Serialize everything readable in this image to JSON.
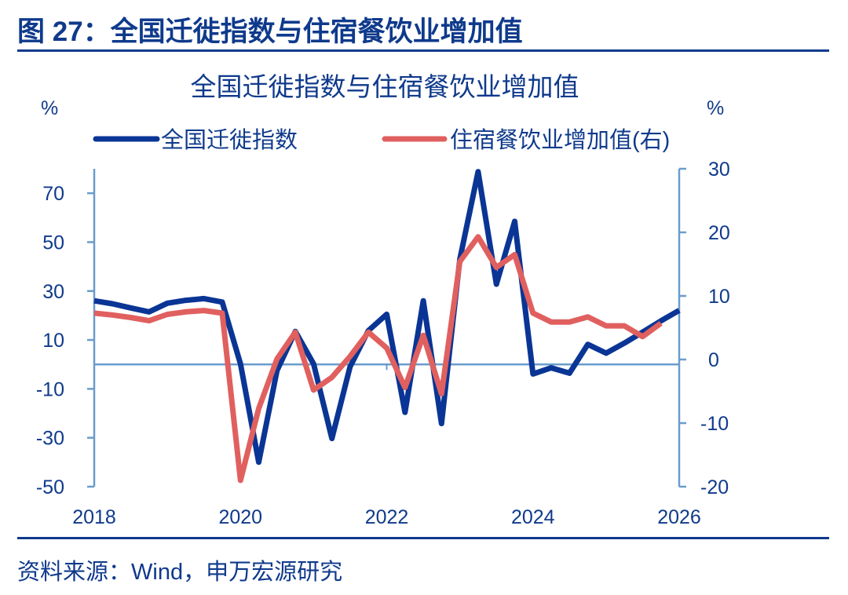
{
  "figure_title": "图 27：全国迁徙指数与住宿餐饮业增加值",
  "source": "资料来源：Wind，申万宏源研究",
  "colors": {
    "accent": "#0f3a8c",
    "series_blue": "#0a3595",
    "series_red": "#e0605f",
    "axis": "#6a9ccc"
  },
  "chart_data": {
    "type": "line",
    "title": "全国迁徙指数与住宿餐饮业增加值",
    "ylabel_left": "%",
    "ylabel_right": "%",
    "xlim": [
      2018,
      2026
    ],
    "xticks": [
      2018,
      2020,
      2022,
      2024,
      2026
    ],
    "ylim_left": [
      -50,
      80
    ],
    "yticks_left": [
      -50,
      -30,
      -10,
      10,
      30,
      50,
      70
    ],
    "ylim_right": [
      -20,
      30
    ],
    "yticks_right": [
      -20,
      -10,
      0,
      10,
      20,
      30
    ],
    "grid": false,
    "legend_position": "top",
    "x": [
      2018,
      2018.25,
      2018.5,
      2018.75,
      2019,
      2019.25,
      2019.5,
      2019.75,
      2020,
      2020.25,
      2020.5,
      2020.75,
      2021,
      2021.25,
      2021.5,
      2021.75,
      2022,
      2022.25,
      2022.5,
      2022.75,
      2023,
      2023.25,
      2023.5,
      2023.75,
      2024,
      2024.25,
      2024.5,
      2024.75,
      2025,
      2025.25,
      2025.5,
      2025.75,
      2026
    ],
    "series": [
      {
        "name": "全国迁徙指数",
        "axis": "left",
        "color": "#0a3595",
        "values": [
          26.0,
          24.8,
          23.1,
          21.5,
          25.0,
          26.2,
          26.9,
          25.5,
          0.2,
          -40.0,
          -2.5,
          13.5,
          0.2,
          -30.3,
          -0.9,
          13.8,
          20.5,
          -19.6,
          26.0,
          -24.2,
          42.9,
          78.8,
          32.8,
          58.5,
          -3.9,
          -1.4,
          -3.6,
          8.2,
          4.6,
          8.7,
          13.2,
          17.8,
          22.1
        ]
      },
      {
        "name": "住宿餐饮业增加值(右)",
        "axis": "right",
        "color": "#e0605f",
        "values": [
          7.3,
          7.0,
          6.6,
          6.1,
          7.1,
          7.5,
          7.7,
          7.3,
          -19.0,
          -7.7,
          0.1,
          4.3,
          -4.8,
          -2.8,
          0.5,
          4.3,
          1.8,
          -4.4,
          3.8,
          -5.4,
          15.4,
          19.3,
          14.5,
          16.5,
          7.3,
          5.9,
          5.9,
          6.7,
          5.3,
          5.3,
          3.6,
          5.7,
          null
        ]
      }
    ]
  }
}
